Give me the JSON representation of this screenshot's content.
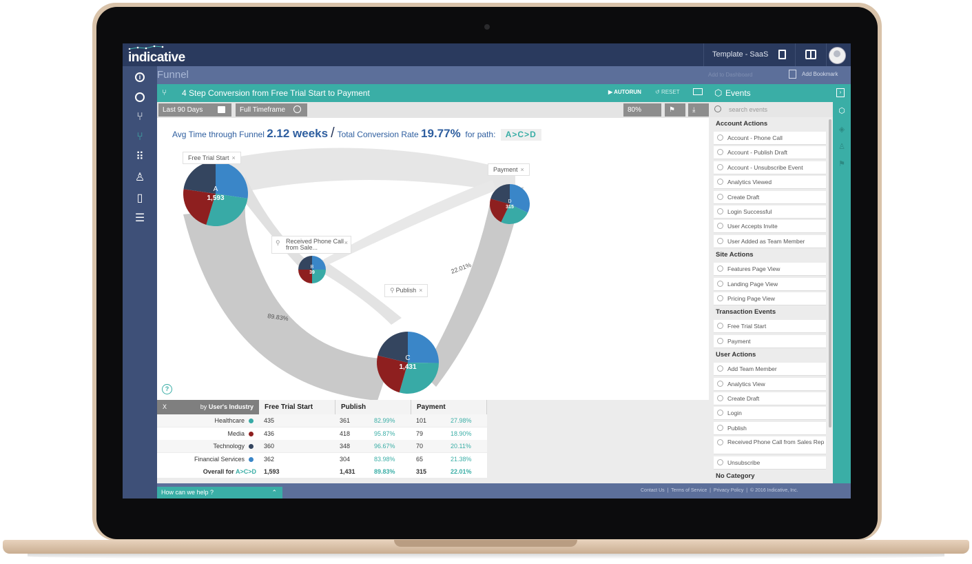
{
  "app": {
    "logo": "indicative",
    "template_label": "Template - SaaS",
    "page_title": "Funnel",
    "add_to_dashboard": "Add to Dashboard",
    "add_bookmark": "Add Bookmark"
  },
  "nav_icons": [
    "info-icon",
    "dashboard-icon",
    "segmentation-icon",
    "funnel-icon",
    "cohort-icon",
    "users-icon",
    "bookmark-icon",
    "list-icon"
  ],
  "panel": {
    "title": "4 Step Conversion from Free Trial Start to Payment",
    "autorun_label": "AUTORUN",
    "reset_label": "RESET",
    "date_range": "Last 90 Days",
    "timeframe": "Full Timeframe",
    "zoom": "80%"
  },
  "summary": {
    "avg_time_label": "Avg Time through Funnel",
    "avg_time_value": "2.12 weeks",
    "conversion_label": "Total Conversion Rate",
    "conversion_value": "19.77%",
    "path_label": "for path:",
    "path_value": "A>C>D"
  },
  "funnel": {
    "step_tags": {
      "a": "Free Trial Start",
      "b": "Received Phone Call from Sale...",
      "c": "Publish",
      "d": "Payment"
    },
    "nodes": [
      {
        "letter": "A",
        "count": "1,593",
        "slices": [
          27.3,
          27.4,
          22.6,
          22.7
        ]
      },
      {
        "letter": "B",
        "count": "39",
        "slices": [
          25,
          25,
          25,
          25
        ]
      },
      {
        "letter": "C",
        "count": "1,431",
        "slices": [
          25.2,
          29.2,
          24.3,
          21.3
        ]
      },
      {
        "letter": "D",
        "count": "315",
        "slices": [
          32.1,
          25.1,
          22.2,
          20.6
        ]
      }
    ],
    "flow_labels": {
      "ac": "89.83%",
      "cd": "22.01%"
    },
    "pie_colors": [
      "#3a86c8",
      "#38aaa6",
      "#8e1f1f",
      "#34455f"
    ]
  },
  "table": {
    "group_by_prefix": "by",
    "group_by": "User's Industry",
    "close": "X",
    "columns": [
      "Free Trial Start",
      "Publish",
      "Payment"
    ],
    "rows": [
      {
        "name": "Healthcare",
        "color": "#38aaa6",
        "fts": "435",
        "pub": "361",
        "pub_pct": "82.99%",
        "pay": "101",
        "pay_pct": "27.98%"
      },
      {
        "name": "Media",
        "color": "#8e1f1f",
        "fts": "436",
        "pub": "418",
        "pub_pct": "95.87%",
        "pay": "79",
        "pay_pct": "18.90%"
      },
      {
        "name": "Technology",
        "color": "#34455f",
        "fts": "360",
        "pub": "348",
        "pub_pct": "96.67%",
        "pay": "70",
        "pay_pct": "20.11%"
      },
      {
        "name": "Financial Services",
        "color": "#3a86c8",
        "fts": "362",
        "pub": "304",
        "pub_pct": "83.98%",
        "pay": "65",
        "pay_pct": "21.38%"
      }
    ],
    "overall": {
      "label": "Overall for",
      "path": "A>C>D",
      "fts": "1,593",
      "pub": "1,431",
      "pub_pct": "89.83%",
      "pay": "315",
      "pay_pct": "22.01%"
    }
  },
  "events": {
    "title": "Events",
    "search_placeholder": "search events",
    "categories": [
      {
        "name": "Account Actions",
        "items": [
          "Account - Phone Call",
          "Account - Publish Draft",
          "Account - Unsubscribe Event",
          "Analytics Viewed",
          "Create Draft",
          "Login Successful",
          "User Accepts Invite",
          "User Added as Team Member"
        ]
      },
      {
        "name": "Site Actions",
        "items": [
          "Features Page View",
          "Landing Page View",
          "Pricing Page View"
        ]
      },
      {
        "name": "Transaction Events",
        "items": [
          "Free Trial Start",
          "Payment"
        ]
      },
      {
        "name": "User Actions",
        "items": [
          "Add Team Member",
          "Analytics View",
          "Create Draft",
          "Login",
          "Publish",
          "Received Phone Call from Sales Rep",
          "Unsubscribe"
        ]
      },
      {
        "name": "No Category",
        "items": []
      }
    ]
  },
  "footer": {
    "help": "How can we help ?",
    "contact": "Contact Us",
    "terms": "Terms of Service",
    "privacy": "Privacy Policy",
    "copyright": "© 2016 Indicative, Inc."
  }
}
